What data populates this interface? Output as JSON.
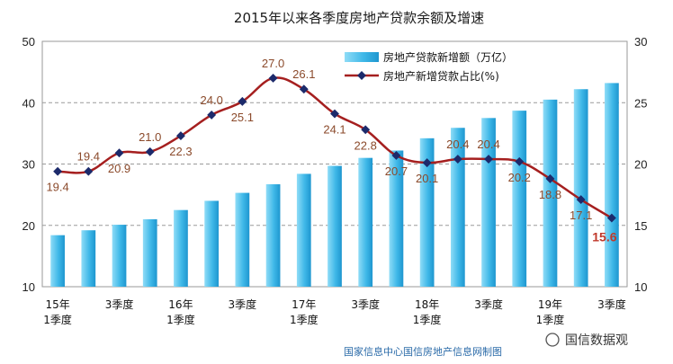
{
  "chart_data": {
    "type": "bar+line",
    "title": "2015年以来各季度房地产贷款余额及增速",
    "categories": [
      "15Q1",
      "15Q2",
      "15Q3",
      "15Q4",
      "16Q1",
      "16Q2",
      "16Q3",
      "16Q4",
      "17Q1",
      "17Q2",
      "17Q3",
      "17Q4",
      "18Q1",
      "18Q2",
      "18Q3",
      "18Q4",
      "19Q1",
      "19Q2",
      "19Q3"
    ],
    "x_tick_labels": [
      {
        "index": 0,
        "lines": [
          "15年",
          "1季度"
        ]
      },
      {
        "index": 2,
        "lines": [
          "3季度"
        ]
      },
      {
        "index": 4,
        "lines": [
          "16年",
          "1季度"
        ]
      },
      {
        "index": 6,
        "lines": [
          "3季度"
        ]
      },
      {
        "index": 8,
        "lines": [
          "17年",
          "1季度"
        ]
      },
      {
        "index": 10,
        "lines": [
          "3季度"
        ]
      },
      {
        "index": 12,
        "lines": [
          "18年",
          "1季度"
        ]
      },
      {
        "index": 14,
        "lines": [
          "3季度"
        ]
      },
      {
        "index": 16,
        "lines": [
          "19年",
          "1季度"
        ]
      },
      {
        "index": 18,
        "lines": [
          "3季度"
        ]
      }
    ],
    "series": [
      {
        "name": "房地产贷款新增额（万亿）",
        "type": "bar",
        "axis": "left",
        "color": "#3fb8e8",
        "values": [
          18.4,
          19.2,
          20.1,
          21.0,
          22.5,
          24.0,
          25.3,
          26.7,
          28.4,
          29.7,
          31.0,
          32.2,
          34.2,
          35.9,
          37.5,
          38.7,
          40.5,
          42.2,
          43.2
        ]
      },
      {
        "name": "房地产新增贷款占比(%)",
        "type": "line",
        "axis": "right",
        "color": "#a51f1f",
        "marker_color": "#1c2a6b",
        "values": [
          19.4,
          19.4,
          20.9,
          21.0,
          22.3,
          24.0,
          25.1,
          27.0,
          26.1,
          24.1,
          22.8,
          20.7,
          20.1,
          20.4,
          20.4,
          20.2,
          18.8,
          17.1,
          15.6
        ]
      }
    ],
    "data_labels": [
      "19.4",
      "19.4",
      "20.9",
      "21.0",
      "22.3",
      "24.0",
      "25.1",
      "27.0",
      "26.1",
      "24.1",
      "22.8",
      "20.7",
      "20.1",
      "20.4",
      "20.4",
      "20.2",
      "18.8",
      "17.1",
      "15.6"
    ],
    "y_left": {
      "min": 10,
      "max": 50,
      "ticks": [
        10,
        20,
        30,
        40,
        50
      ]
    },
    "y_right": {
      "min": 10,
      "max": 30,
      "ticks": [
        10,
        15,
        20,
        25,
        30
      ]
    },
    "grid": "horizontal-dashed",
    "legend_position": "top-right",
    "source": "国家信息中心国信房地产信息网制图",
    "watermark": "国信数据观"
  }
}
